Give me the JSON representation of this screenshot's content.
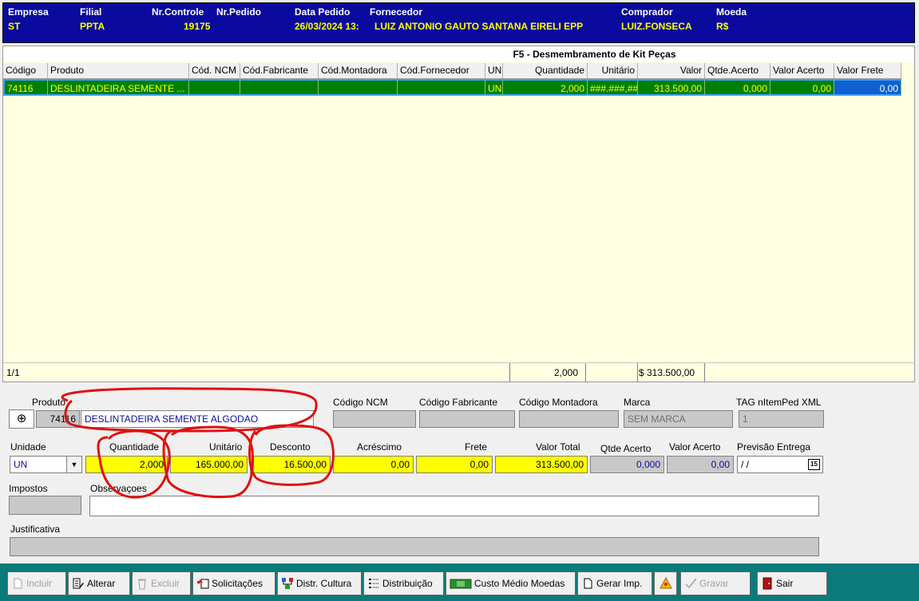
{
  "header": {
    "empresa_label": "Empresa",
    "empresa_value": "ST",
    "filial_label": "Filial",
    "filial_value": "PPTA",
    "nrcontrole_label": "Nr.Controle",
    "nrcontrole_value": "19175",
    "nrpedido_label": "Nr.Pedido",
    "nrpedido_value": "",
    "datapedido_label": "Data Pedido",
    "datapedido_value": "26/03/2024 13:",
    "fornecedor_label": "Fornecedor",
    "fornecedor_value": "LUIZ ANTONIO GAUTO SANTANA EIRELI EPP",
    "comprador_label": "Comprador",
    "comprador_value": "LUIZ.FONSECA",
    "moeda_label": "Moeda",
    "moeda_value": "R$"
  },
  "grid": {
    "title": "F5 - Desmembramento de Kit Peças",
    "columns": [
      "Código",
      "Produto",
      "Cód. NCM",
      "Cód.Fabricante",
      "Cód.Montadora",
      "Cód.Fornecedor",
      "UN",
      "Quantidade",
      "Unitário",
      "Valor",
      "Qtde.Acerto",
      "Valor Acerto",
      "Valor Frete"
    ],
    "rows": [
      [
        "74116",
        "DESLINTADEIRA SEMENTE ...",
        "",
        "",
        "",
        "",
        "UN",
        "2,000",
        "###.###,##",
        "313.500,00",
        "0,000",
        "0,00",
        "0,00"
      ]
    ],
    "footer": {
      "counter": "1/1",
      "total_quantity": "2,000",
      "total_value": "$ 313.500,00"
    }
  },
  "form": {
    "produto_label": "Produto",
    "produto_codigo": "74116",
    "produto_descricao": "DESLINTADEIRA SEMENTE ALGODAO",
    "codigo_ncm_label": "Código NCM",
    "codigo_fabricante_label": "Código Fabricante",
    "codigo_montadora_label": "Código Montadora",
    "marca_label": "Marca",
    "marca_value": "SEM MARCA",
    "tag_label": "TAG nItemPed XML",
    "tag_value": "1",
    "unidade_label": "Unidade",
    "unidade_value": "UN",
    "quantidade_label": "Quantidade",
    "quantidade_value": "2,000",
    "unitario_label": "Unitário",
    "unitario_value": "165.000,00",
    "desconto_label": "Desconto",
    "desconto_value": "16.500,00",
    "acrescimo_label": "Acréscimo",
    "acrescimo_value": "0,00",
    "frete_label": "Frete",
    "frete_value": "0,00",
    "valor_total_label": "Valor Total",
    "valor_total_value": "313.500,00",
    "qtde_acerto_label": "Qtde Acerto",
    "qtde_acerto_value": "0,000",
    "valor_acerto_label": "Valor Acerto",
    "valor_acerto_value": "0,00",
    "previsao_label": "Previsão Entrega",
    "previsao_value": " / /",
    "impostos_label": "Impostos",
    "observacoes_label": "Observaçoes",
    "justificativa_label": "Justificativa"
  },
  "toolbar": {
    "incluir": "Incluir",
    "alterar": "Alterar",
    "excluir": "Excluir",
    "solicitacoes": "Solicitações",
    "distr_cultura": "Distr. Cultura",
    "distribuicao": "Distribuição",
    "custo_medio": "Custo Médio Moedas",
    "gerar_imp": "Gerar Imp.",
    "gravar": "Gravar",
    "sair": "Sair"
  },
  "colors": {
    "header_bg": "#0a0a9e",
    "header_label": "#ffffff",
    "header_value": "#ffff00",
    "grid_bg": "#ffffe1",
    "row_selected_bg": "#008000",
    "toolbar_bg": "#0a7a7a",
    "annotation": "#e01010"
  }
}
